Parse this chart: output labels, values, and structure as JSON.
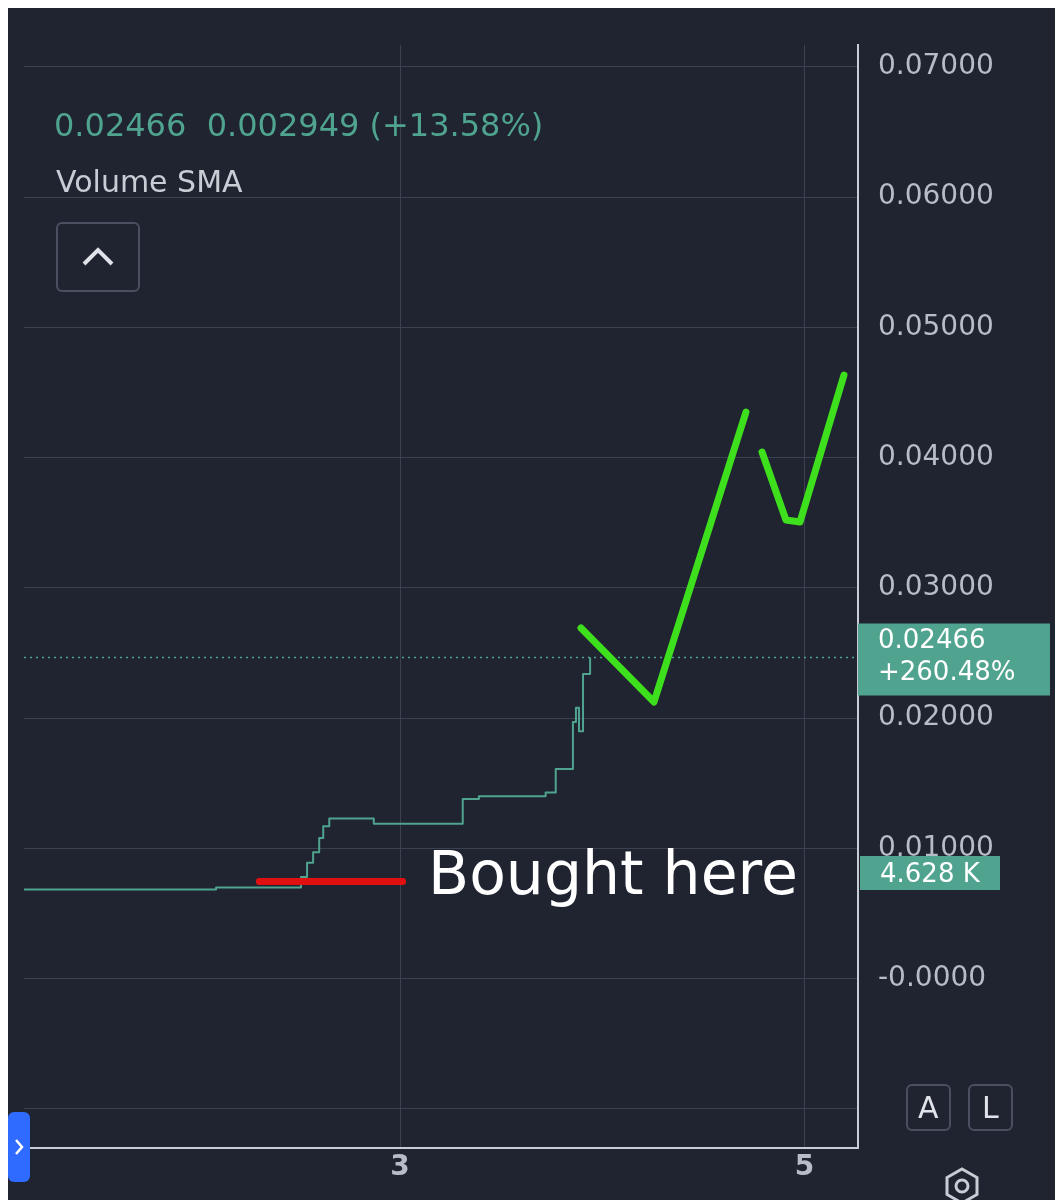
{
  "chart_data": {
    "type": "step",
    "subtitle": "0.02466  0.002949 (+13.58%)",
    "x": [
      1.14,
      2.09,
      2.51,
      2.54,
      2.57,
      2.6,
      2.62,
      2.65,
      2.87,
      3.31,
      3.39,
      3.72,
      3.77,
      3.855,
      3.87,
      3.885,
      3.905,
      3.94
    ],
    "series": [
      {
        "color": "#4fa38f",
        "values": [
          0.00684,
          0.007,
          0.0078,
          0.0089,
          0.0097,
          0.0108,
          0.0117,
          0.0123,
          0.0119,
          0.0138,
          0.014,
          0.0143,
          0.0161,
          0.0197,
          0.0208,
          0.019,
          0.0234,
          0.02466
        ]
      }
    ],
    "xlim": [
      1.14,
      5.265
    ],
    "xticks": [
      {
        "value": 3,
        "label": "3"
      },
      {
        "value": 5,
        "label": "5"
      }
    ],
    "ylim": [
      -0.013,
      0.0717
    ],
    "yticks": [
      {
        "value": -0.01,
        "label": null
      },
      {
        "value": 0,
        "label": "-0.0000"
      },
      {
        "value": 0.01,
        "label": "0.01000"
      },
      {
        "value": 0.02,
        "label": "0.02000"
      },
      {
        "value": 0.03,
        "label": "0.03000"
      },
      {
        "value": 0.04,
        "label": "0.04000"
      },
      {
        "value": 0.05,
        "label": "0.05000"
      },
      {
        "value": 0.06,
        "label": "0.06000"
      },
      {
        "value": 0.07,
        "label": "0.07000"
      }
    ],
    "grid": true,
    "legend": false,
    "ref_lines": [
      {
        "axis": "y",
        "value": 0.02466,
        "label": "0.02466 +260.48%",
        "color": "#4fa38f",
        "line_style": "dotted"
      }
    ],
    "annotations": [
      "Volume SMA",
      "Bought here",
      "4.628 K",
      "A",
      "L"
    ]
  }
}
